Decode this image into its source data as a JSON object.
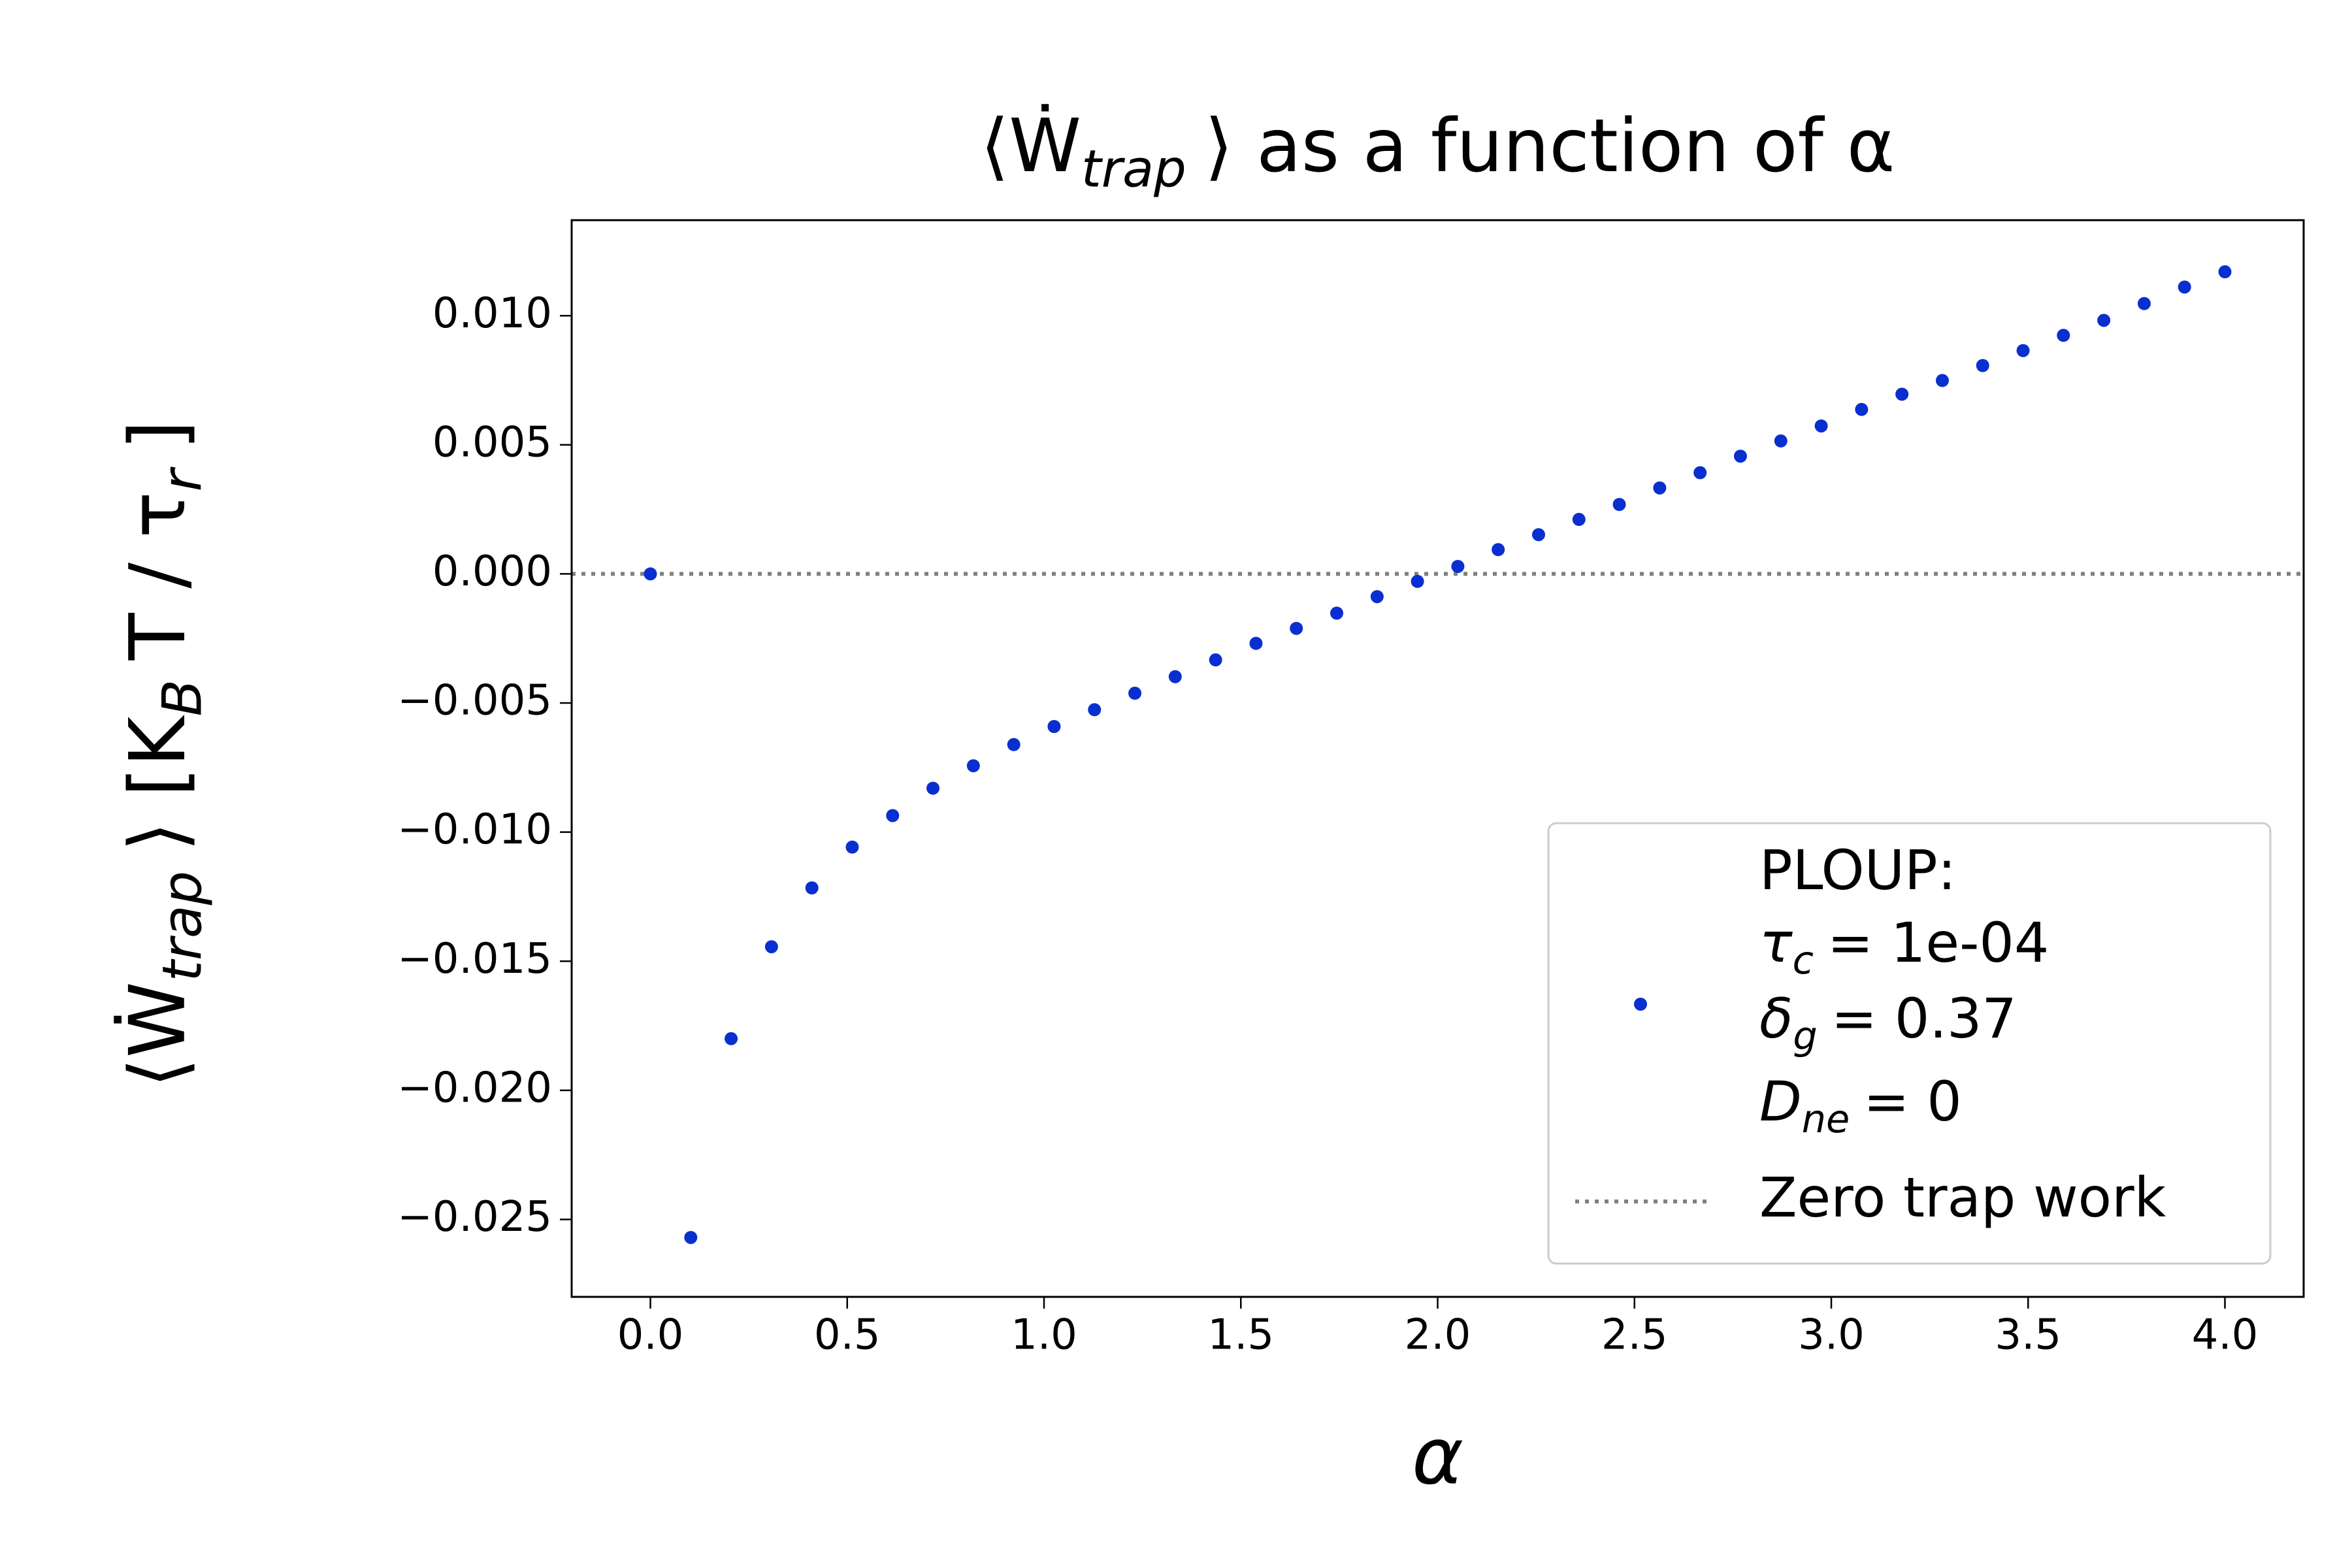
{
  "chart_data": {
    "type": "scatter",
    "title": [
      "⟨Ẇ",
      "trap",
      "⟩ as a function of α"
    ],
    "xlabel": "α",
    "ylabel": [
      "⟨Ẇ",
      "trap",
      "⟩   [K",
      "B",
      "T / τ",
      "r",
      "]"
    ],
    "xlim": [
      -0.2,
      4.2
    ],
    "ylim": [
      -0.028,
      0.0137
    ],
    "xticks": [
      {
        "value": 0,
        "label": "0.0"
      },
      0.5,
      {
        "value": 1,
        "label": "1.0"
      },
      1.5,
      {
        "value": 2,
        "label": "2.0"
      },
      2.5,
      {
        "value": 3,
        "label": "3.0"
      },
      3.5,
      {
        "value": 4,
        "label": "4.0"
      }
    ],
    "yticks": [
      {
        "value": -0.025,
        "label": "−0.025"
      },
      {
        "value": -0.02,
        "label": "−0.020"
      },
      {
        "value": -0.015,
        "label": "−0.015"
      },
      {
        "value": -0.01,
        "label": "−0.010"
      },
      {
        "value": -0.005,
        "label": "−0.005"
      },
      {
        "value": 0,
        "label": "0.000"
      },
      {
        "value": 0.005,
        "label": "0.005"
      },
      {
        "value": 0.01,
        "label": "0.010"
      }
    ],
    "grid": false,
    "legend": "lower right",
    "series": [
      {
        "name": [
          [
            "PLOUP:"
          ],
          [
            "τ",
            "c",
            "= 1e-04"
          ],
          [
            "δ",
            "g",
            "= 0.37"
          ],
          [
            "D",
            "ne",
            "= 0"
          ]
        ],
        "color": "#0a2fd0",
        "x": [
          0,
          0.1026,
          0.2051,
          0.3077,
          0.4103,
          0.5128,
          0.6154,
          0.7179,
          0.8205,
          0.9231,
          1.0256,
          1.1282,
          1.2308,
          1.3333,
          1.4359,
          1.5385,
          1.641,
          1.7436,
          1.8462,
          1.9487,
          2.0513,
          2.1538,
          2.2564,
          2.359,
          2.4615,
          2.5641,
          2.6667,
          2.7692,
          2.8718,
          2.9744,
          3.0769,
          3.1795,
          3.2821,
          3.3846,
          3.4872,
          3.5897,
          3.6923,
          3.7949,
          3.8974,
          4.0
        ],
        "values": [
          0,
          -0.0257,
          -0.018,
          -0.01444,
          -0.01216,
          -0.01058,
          -0.00936,
          -0.0083,
          -0.00743,
          -0.00661,
          -0.00591,
          -0.00526,
          -0.00462,
          -0.00398,
          -0.00333,
          -0.00269,
          -0.00211,
          -0.00152,
          -0.00088,
          -0.00029,
          0.00029,
          0.00094,
          0.00152,
          0.00211,
          0.00269,
          0.00333,
          0.00392,
          0.00456,
          0.00515,
          0.00573,
          0.00637,
          0.00696,
          0.00749,
          0.00807,
          0.00865,
          0.00924,
          0.00982,
          0.01047,
          0.01111,
          0.0117
        ]
      }
    ],
    "hline": {
      "y": 0,
      "label": "Zero trap work",
      "color": "#808080",
      "style": "dotted"
    }
  }
}
